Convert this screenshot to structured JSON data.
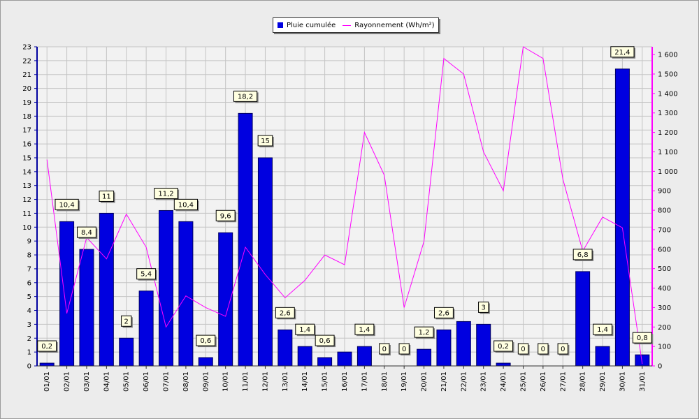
{
  "chart_data": {
    "type": "bar",
    "categories": [
      "01/01",
      "02/01",
      "03/01",
      "04/01",
      "05/01",
      "06/01",
      "07/01",
      "08/01",
      "09/01",
      "10/01",
      "11/01",
      "12/01",
      "13/01",
      "14/01",
      "15/01",
      "16/01",
      "17/01",
      "18/01",
      "19/01",
      "20/01",
      "21/01",
      "22/01",
      "23/01",
      "24/01",
      "25/01",
      "26/01",
      "27/01",
      "28/01",
      "29/01",
      "30/01",
      "31/01"
    ],
    "series": [
      {
        "name": "Pluie cumulée",
        "type": "bar",
        "axis": "left",
        "color": "#0000e0",
        "values": [
          0.2,
          10.4,
          8.4,
          11,
          2,
          5.4,
          11.2,
          10.4,
          0.6,
          9.6,
          18.2,
          15,
          2.6,
          1.4,
          0.6,
          1,
          1.4,
          0,
          0,
          1.2,
          2.6,
          3.2,
          3,
          0.2,
          0,
          0,
          0,
          6.8,
          1.4,
          21.4,
          0.8
        ],
        "labels": [
          "0,2",
          "10,4",
          "8,4",
          "11",
          "2",
          "5,4",
          "11,2",
          "10,4",
          "0,6",
          "9,6",
          "18,2",
          "15",
          "2,6",
          "1,4",
          "0,6",
          null,
          "1,4",
          "0",
          "0",
          "1,2",
          "2,6",
          null,
          "3",
          "0,2",
          "0",
          "0",
          "0",
          "6,8",
          "1,4",
          "21,4",
          "0,8"
        ]
      },
      {
        "name": "Rayonnement (Wh/m²)",
        "type": "line",
        "axis": "right",
        "color": "#ff00ff",
        "values": [
          1060,
          270,
          660,
          550,
          780,
          610,
          200,
          360,
          300,
          255,
          610,
          470,
          350,
          440,
          570,
          520,
          1200,
          980,
          300,
          640,
          1580,
          1500,
          1100,
          900,
          1640,
          1580,
          960,
          590,
          765,
          710,
          10
        ]
      }
    ],
    "y_left": {
      "min": 0,
      "max": 23,
      "ticks": [
        "0",
        "1",
        "2",
        "3",
        "4",
        "5",
        "6",
        "7",
        "8",
        "9",
        "10",
        "11",
        "12",
        "13",
        "14",
        "15",
        "16",
        "17",
        "18",
        "19",
        "20",
        "21",
        "22",
        "23"
      ]
    },
    "y_right": {
      "min": 0,
      "max": 1640,
      "ticks": [
        "0",
        "100",
        "200",
        "300",
        "400",
        "500",
        "600",
        "700",
        "800",
        "900",
        "1 000",
        "1 100",
        "1 200",
        "1 300",
        "1 400",
        "1 500",
        "1 600"
      ]
    },
    "grid": true,
    "legend": "top-center",
    "colors": {
      "bar": "#0000e0",
      "line": "#ff00ff",
      "plot_bg": "#f2f2f2",
      "grid": "#c4c4c4",
      "label_bg": "#ffffe1"
    }
  }
}
